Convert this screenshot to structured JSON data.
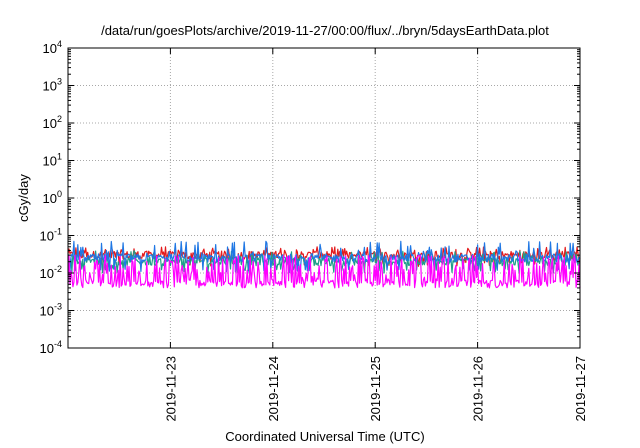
{
  "chart_data": {
    "type": "line",
    "title": "/data/run/goesPlots/archive/2019-11-27/00:00/flux/../bryn/5daysEarthData.plot",
    "xlabel": "Coordinated Universal Time (UTC)",
    "ylabel": "cGy/day",
    "yscale": "log",
    "ylim": [
      0.0001,
      10000
    ],
    "xlim": [
      "2019-11-22T00:00",
      "2019-11-27T00:00"
    ],
    "y_ticks": [
      {
        "mant": "10",
        "exp": "4"
      },
      {
        "mant": "10",
        "exp": "3"
      },
      {
        "mant": "10",
        "exp": "2"
      },
      {
        "mant": "10",
        "exp": "1"
      },
      {
        "mant": "10",
        "exp": "0"
      },
      {
        "mant": "10",
        "exp": "-1"
      },
      {
        "mant": "10",
        "exp": "-2"
      },
      {
        "mant": "10",
        "exp": "-3"
      },
      {
        "mant": "10",
        "exp": "-4"
      }
    ],
    "x_ticks": [
      "2019-11-23",
      "2019-11-24",
      "2019-11-25",
      "2019-11-26",
      "2019-11-27"
    ],
    "grid": true,
    "legend": "none",
    "series": [
      {
        "color": "#e41a1c",
        "base": 0.03,
        "spike_max": 0.05,
        "dip_min": 0.015
      },
      {
        "color": "#1f9e89",
        "base": 0.02,
        "spike_max": 0.04,
        "dip_min": 0.01
      },
      {
        "color": "#1f77e4",
        "base": 0.025,
        "spike_max": 0.07,
        "dip_min": 0.01
      },
      {
        "color": "#ff00ff",
        "base": 0.006,
        "spike_max": 0.03,
        "dip_min": 0.004
      }
    ]
  }
}
